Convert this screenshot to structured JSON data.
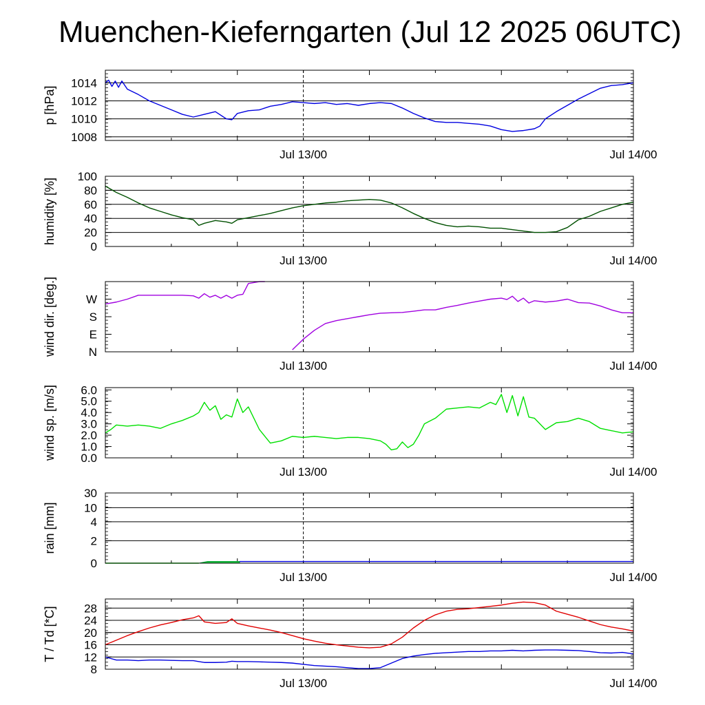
{
  "title": "Muenchen-Kieferngarten (Jul 12 2025 06UTC)",
  "x_tick_labels": [
    "Jul 13/00",
    "Jul 14/00"
  ],
  "chart_data": [
    {
      "type": "line",
      "id": "pressure",
      "ylabel": "p [hPa]",
      "ylim": [
        1007.6,
        1015.4
      ],
      "yticks": [
        1008,
        1010,
        1012,
        1014
      ],
      "ytick_labels": [
        "1008",
        "1010",
        "1012",
        "1014"
      ],
      "grid": true,
      "colors": [
        "#0000e0"
      ],
      "x_hours": [
        0,
        0.3,
        0.6,
        0.9,
        1.2,
        1.5,
        2.0,
        3.0,
        4.0,
        5.0,
        6.0,
        7.0,
        8.0,
        9.0,
        10.0,
        11.0,
        11.5,
        12.0,
        13.0,
        14.0,
        15.0,
        16.0,
        17.0,
        18.0,
        19.0,
        20.0,
        21.0,
        22.0,
        23.0,
        24.0,
        25.0,
        26.0,
        27.0,
        28.0,
        29.0,
        30.0,
        31.0,
        32.0,
        33.0,
        34.0,
        35.0,
        36.0,
        37.0,
        38.0,
        39.0,
        39.5,
        40.0,
        41.0,
        42.0,
        43.0,
        44.0,
        45.0,
        46.0,
        47.0,
        48.0
      ],
      "series": [
        {
          "values": [
            1014.0,
            1014.3,
            1013.6,
            1014.2,
            1013.5,
            1014.2,
            1013.3,
            1012.7,
            1012.0,
            1011.5,
            1011.0,
            1010.5,
            1010.2,
            1010.5,
            1010.8,
            1010.0,
            1009.9,
            1010.6,
            1010.9,
            1011.0,
            1011.4,
            1011.6,
            1011.9,
            1011.8,
            1011.7,
            1011.8,
            1011.6,
            1011.7,
            1011.5,
            1011.7,
            1011.8,
            1011.7,
            1011.2,
            1010.6,
            1010.1,
            1009.7,
            1009.6,
            1009.6,
            1009.5,
            1009.4,
            1009.2,
            1008.8,
            1008.6,
            1008.7,
            1008.9,
            1009.2,
            1010.0,
            1010.8,
            1011.5,
            1012.2,
            1012.8,
            1013.4,
            1013.7,
            1013.8,
            1014.0
          ]
        }
      ]
    },
    {
      "type": "line",
      "id": "humidity",
      "ylabel": "humidity [%]",
      "ylim": [
        0,
        100
      ],
      "yticks": [
        0,
        20,
        40,
        60,
        80,
        100
      ],
      "ytick_labels": [
        "0",
        "20",
        "40",
        "60",
        "80",
        "100"
      ],
      "grid": true,
      "colors": [
        "#005000"
      ],
      "x_hours": [
        0,
        1,
        2,
        3,
        4,
        5,
        6,
        7,
        8,
        8.5,
        9,
        10,
        11,
        11.5,
        12,
        13,
        14,
        15,
        16,
        17,
        18,
        19,
        20,
        21,
        22,
        23,
        24,
        25,
        26,
        27,
        28,
        29,
        30,
        31,
        32,
        33,
        34,
        35,
        36,
        37,
        38,
        39,
        40,
        41,
        42,
        43,
        44,
        45,
        46,
        47,
        48
      ],
      "series": [
        {
          "values": [
            86,
            77,
            70,
            62,
            55,
            50,
            45,
            41,
            38,
            30,
            33,
            37,
            35,
            33,
            38,
            41,
            44,
            47,
            51,
            55,
            58,
            60,
            62,
            63,
            65,
            66,
            67,
            66,
            62,
            55,
            47,
            40,
            34,
            30,
            28,
            29,
            28,
            26,
            26,
            24,
            22,
            20,
            20,
            21,
            27,
            38,
            43,
            50,
            55,
            60,
            63
          ]
        }
      ]
    },
    {
      "type": "line",
      "id": "wind_direction",
      "ylabel": "wind dir. [deg.]",
      "ylim": [
        0,
        360
      ],
      "yticks": [
        0,
        90,
        180,
        270
      ],
      "ytick_labels": [
        "N",
        "E",
        "S",
        "W"
      ],
      "grid": false,
      "colors": [
        "#a000e0"
      ],
      "x_hours": [
        0,
        1,
        2,
        3,
        4,
        5,
        6,
        7,
        8,
        8.5,
        9,
        9.5,
        10,
        10.5,
        11,
        11.5,
        12,
        12.5,
        13,
        14,
        14.5,
        15,
        16,
        17,
        18,
        19,
        20,
        21,
        22,
        23,
        24,
        25,
        26,
        27,
        28,
        29,
        30,
        31,
        32,
        33,
        34,
        35,
        36,
        36.5,
        37,
        37.5,
        38,
        38.5,
        39,
        40,
        41,
        42,
        43,
        44,
        45,
        46,
        47,
        48
      ],
      "series": [
        {
          "values": [
            245,
            255,
            270,
            290,
            290,
            290,
            290,
            290,
            287,
            275,
            298,
            280,
            290,
            275,
            290,
            275,
            290,
            295,
            350,
            360,
            360,
            null,
            null,
            10,
            65,
            110,
            145,
            160,
            170,
            180,
            190,
            198,
            200,
            202,
            208,
            215,
            215,
            228,
            238,
            250,
            260,
            270,
            275,
            268,
            285,
            258,
            275,
            250,
            262,
            255,
            260,
            270,
            252,
            250,
            235,
            215,
            200,
            200
          ]
        }
      ],
      "wrap_note_segments": [
        [
          0,
          14.5
        ],
        [
          14.5,
          48
        ]
      ]
    },
    {
      "type": "line",
      "id": "wind_speed",
      "ylabel": "wind sp. [m/s]",
      "ylim": [
        0,
        6.2
      ],
      "yticks": [
        0,
        1,
        2,
        3,
        4,
        5,
        6
      ],
      "ytick_labels": [
        "0.0",
        "1.0",
        "2.0",
        "3.0",
        "4.0",
        "5.0",
        "6.0"
      ],
      "grid": false,
      "colors": [
        "#00e000"
      ],
      "x_hours": [
        0,
        0.5,
        1,
        2,
        3,
        4,
        5,
        6,
        7,
        8,
        8.5,
        9,
        9.5,
        10,
        10.5,
        11,
        11.5,
        12,
        12.5,
        13,
        14,
        15,
        16,
        17,
        18,
        19,
        20,
        21,
        22,
        23,
        24,
        25,
        25.5,
        26,
        26.5,
        27,
        27.5,
        28,
        28.5,
        29,
        30,
        31,
        32,
        33,
        34,
        35,
        35.5,
        36,
        36.5,
        37,
        37.5,
        38,
        38.5,
        39,
        40,
        41,
        42,
        43,
        44,
        45,
        46,
        47,
        48
      ],
      "series": [
        {
          "values": [
            2.2,
            2.5,
            2.9,
            2.8,
            2.9,
            2.8,
            2.6,
            3.0,
            3.3,
            3.7,
            4.0,
            4.9,
            4.2,
            4.6,
            3.4,
            3.8,
            3.6,
            5.2,
            4.0,
            4.5,
            2.5,
            1.3,
            1.5,
            1.9,
            1.8,
            1.9,
            1.8,
            1.7,
            1.8,
            1.8,
            1.7,
            1.5,
            1.2,
            0.7,
            0.8,
            1.4,
            0.9,
            1.2,
            2.0,
            3.0,
            3.5,
            4.3,
            4.4,
            4.5,
            4.4,
            4.9,
            4.7,
            5.6,
            4.0,
            5.5,
            3.7,
            5.4,
            3.6,
            3.5,
            2.5,
            3.1,
            3.2,
            3.5,
            3.2,
            2.6,
            2.4,
            2.2,
            2.3
          ]
        }
      ]
    },
    {
      "type": "area",
      "id": "rain",
      "ylabel": "rain [mm]",
      "ylim": [
        0,
        30
      ],
      "yticks": [
        0,
        2,
        4,
        10,
        30
      ],
      "ytick_labels": [
        "0",
        "2",
        "4",
        "10",
        "30"
      ],
      "scale": "nonlinear",
      "grid": true,
      "colors": [
        "#00e000",
        "#00b040",
        "#0000e0"
      ],
      "series": [
        {
          "name": "",
          "x_hours": [
            0,
            8.5
          ],
          "values": [
            0,
            0
          ]
        },
        {
          "name": "",
          "x_hours": [
            8.5,
            9.3,
            12.2
          ],
          "values": [
            0,
            0.15,
            0.15
          ]
        },
        {
          "name": "",
          "x_hours": [
            12.2,
            48
          ],
          "values": [
            0.15,
            0.15
          ]
        }
      ]
    },
    {
      "type": "line",
      "id": "temperature",
      "ylabel": "T / Td [*C]",
      "ylim": [
        8,
        31
      ],
      "yticks": [
        8,
        12,
        16,
        20,
        24,
        28
      ],
      "ytick_labels": [
        "8",
        "12",
        "16",
        "20",
        "24",
        "28"
      ],
      "grid": true,
      "colors": [
        "#e00000",
        "#0000e0"
      ],
      "x_hours": [
        0,
        1,
        2,
        3,
        4,
        5,
        6,
        7,
        8,
        8.5,
        9,
        10,
        11,
        11.5,
        12,
        13,
        14,
        15,
        16,
        17,
        18,
        19,
        20,
        21,
        22,
        23,
        24,
        25,
        26,
        27,
        28,
        29,
        30,
        31,
        32,
        33,
        34,
        35,
        36,
        37,
        38,
        39,
        40,
        41,
        42,
        43,
        44,
        45,
        46,
        47,
        48
      ],
      "series": [
        {
          "values": [
            16.0,
            17.5,
            19.0,
            20.3,
            21.5,
            22.5,
            23.3,
            24.2,
            24.8,
            25.5,
            23.5,
            23.0,
            23.3,
            24.5,
            23.0,
            22.2,
            21.5,
            20.8,
            20.0,
            19.0,
            18.0,
            17.2,
            16.5,
            16.0,
            15.6,
            15.2,
            15.0,
            15.2,
            16.3,
            18.5,
            21.5,
            24.0,
            25.8,
            27.0,
            27.6,
            27.8,
            28.2,
            28.6,
            29.0,
            29.6,
            30.0,
            29.8,
            29.0,
            27.0,
            26.0,
            25.0,
            23.8,
            22.6,
            21.8,
            21.2,
            20.5
          ]
        },
        {
          "values": [
            12.0,
            11.0,
            11.0,
            10.8,
            11.0,
            11.0,
            10.9,
            10.8,
            10.8,
            10.5,
            10.2,
            10.2,
            10.3,
            10.6,
            10.5,
            10.5,
            10.4,
            10.3,
            10.2,
            10.0,
            9.6,
            9.2,
            9.0,
            8.8,
            8.5,
            8.2,
            8.2,
            8.5,
            10.0,
            11.5,
            12.3,
            12.8,
            13.2,
            13.4,
            13.6,
            13.8,
            13.8,
            14.0,
            14.0,
            14.2,
            14.0,
            14.2,
            14.3,
            14.3,
            14.2,
            14.1,
            13.8,
            13.4,
            13.3,
            13.5,
            13.0
          ]
        }
      ]
    }
  ]
}
